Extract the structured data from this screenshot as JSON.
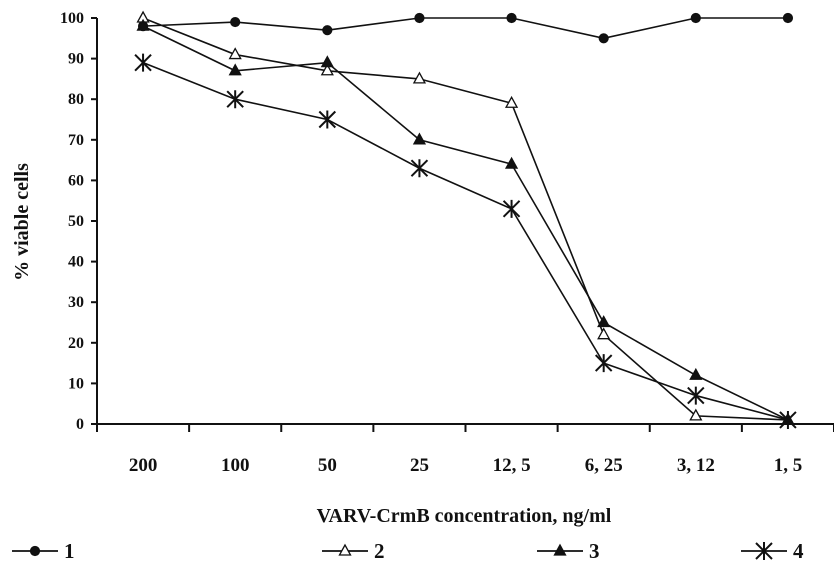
{
  "chart_data": {
    "type": "line",
    "xlabel": "VARV-CrmB concentration, ng/ml",
    "ylabel": "% viable cells",
    "categories": [
      "200",
      "100",
      "50",
      "25",
      "12, 5",
      "6, 25",
      "3, 12",
      "1, 5"
    ],
    "ylim": [
      0,
      100
    ],
    "yticks": [
      "0",
      "10",
      "20",
      "30",
      "40",
      "50",
      "60",
      "70",
      "80",
      "90",
      "100"
    ],
    "grid": false,
    "legend_position": "bottom",
    "series": [
      {
        "name": "1",
        "marker": "filled-circle",
        "color": "#111111",
        "values": [
          98,
          99,
          97,
          100,
          100,
          95,
          100,
          100
        ]
      },
      {
        "name": "2",
        "marker": "open-triangle",
        "color": "#111111",
        "values": [
          100,
          91,
          87,
          85,
          79,
          22,
          2,
          1
        ]
      },
      {
        "name": "3",
        "marker": "filled-triangle",
        "color": "#111111",
        "values": [
          98,
          87,
          89,
          70,
          64,
          25,
          12,
          1
        ]
      },
      {
        "name": "4",
        "marker": "asterisk",
        "color": "#111111",
        "values": [
          89,
          80,
          75,
          63,
          53,
          15,
          7,
          1
        ]
      }
    ]
  }
}
